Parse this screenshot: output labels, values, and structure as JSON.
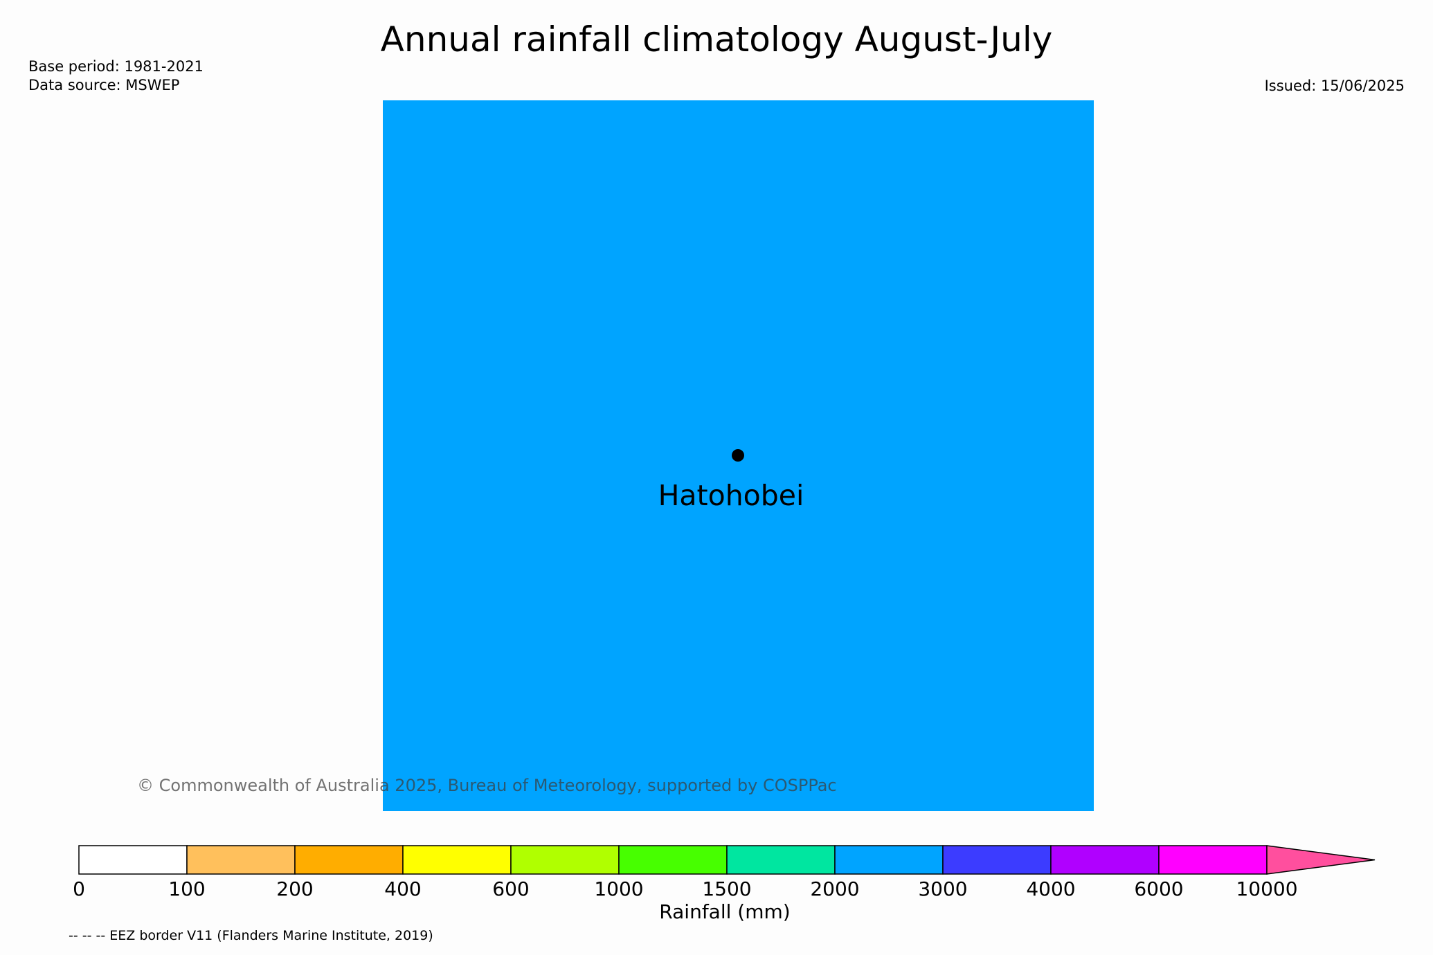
{
  "header": {
    "title": "Annual rainfall climatology August-July",
    "base_period": "Base period: 1981-2021",
    "data_source": "Data source: MSWEP",
    "issued": "Issued: 15/06/2025"
  },
  "map": {
    "fill_color": "#00a4ff",
    "station": {
      "name": "Hatohobei",
      "marker": "station-dot"
    },
    "copyright": "© Commonwealth of Australia 2025, Bureau of Meteorology, supported by COSPPac"
  },
  "legend": {
    "label": "Rainfall (mm)",
    "ticks": [
      "0",
      "100",
      "200",
      "400",
      "600",
      "1000",
      "1500",
      "2000",
      "3000",
      "4000",
      "6000",
      "10000"
    ],
    "colors": [
      "#ffffff",
      "#ffc05c",
      "#ffad00",
      "#ffff00",
      "#b0ff00",
      "#47ff00",
      "#00e6a0",
      "#00a4ff",
      "#3c3cff",
      "#b000ff",
      "#ff00ff"
    ],
    "extend_color": "#ff4f9e",
    "eez_note": "-- -- -- EEZ border V11 (Flanders Marine Institute, 2019)"
  }
}
